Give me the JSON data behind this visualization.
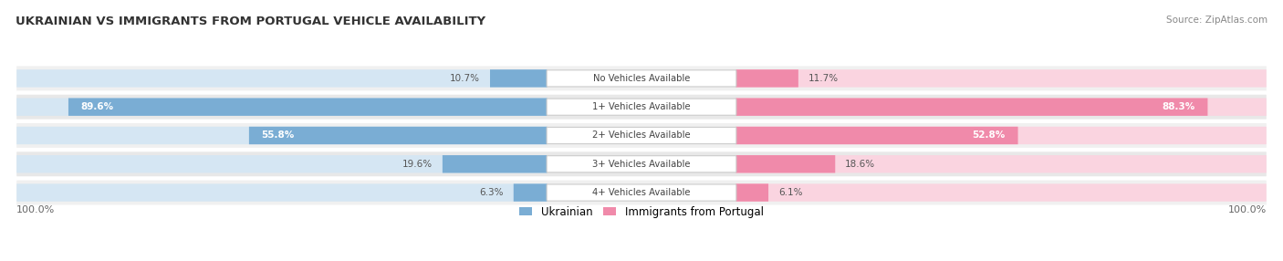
{
  "title": "UKRAINIAN VS IMMIGRANTS FROM PORTUGAL VEHICLE AVAILABILITY",
  "source": "Source: ZipAtlas.com",
  "categories": [
    "No Vehicles Available",
    "1+ Vehicles Available",
    "2+ Vehicles Available",
    "3+ Vehicles Available",
    "4+ Vehicles Available"
  ],
  "ukrainian_values": [
    10.7,
    89.6,
    55.8,
    19.6,
    6.3
  ],
  "portugal_values": [
    11.7,
    88.3,
    52.8,
    18.6,
    6.1
  ],
  "ukrainian_color": "#7aadd4",
  "portugal_color": "#f08aaa",
  "ukrainian_light": "#d5e6f3",
  "portugal_light": "#fad4e0",
  "row_bg_odd": "#f0f0f0",
  "row_bg_even": "#e8e8e8",
  "title_color": "#333333",
  "source_color": "#888888",
  "legend_ukrainian": "Ukrainian",
  "legend_portugal": "Immigrants from Portugal",
  "max_value": 100.0,
  "figsize": [
    14.06,
    2.86
  ],
  "dpi": 100
}
